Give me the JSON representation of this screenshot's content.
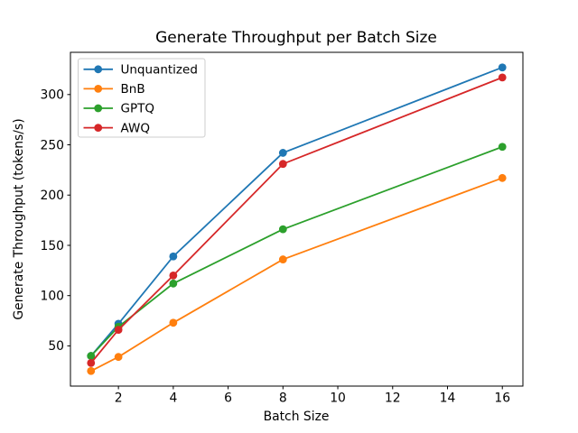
{
  "chart_data": {
    "type": "line",
    "title": "Generate Throughput per Batch Size",
    "xlabel": "Batch Size",
    "ylabel": "Generate Throughput (tokens/s)",
    "x": [
      1,
      2,
      4,
      8,
      16
    ],
    "series": [
      {
        "name": "Unquantized",
        "color": "#1f77b4",
        "values": [
          40,
          72,
          139,
          242,
          327
        ]
      },
      {
        "name": "BnB",
        "color": "#ff7f0e",
        "values": [
          25,
          39,
          73,
          136,
          217
        ]
      },
      {
        "name": "GPTQ",
        "color": "#2ca02c",
        "values": [
          40,
          69,
          112,
          166,
          248
        ]
      },
      {
        "name": "AWQ",
        "color": "#d62728",
        "values": [
          33,
          66,
          120,
          231,
          317
        ]
      }
    ],
    "xticks": [
      2,
      4,
      6,
      8,
      10,
      12,
      14,
      16
    ],
    "yticks": [
      50,
      100,
      150,
      200,
      250,
      300
    ],
    "xlim": [
      0.25,
      16.75
    ],
    "ylim": [
      10,
      342
    ],
    "grid": false,
    "legend_position": "upper-left",
    "marker": "o",
    "axis_color": "#000000",
    "legend_border_color": "#cccccc",
    "background_color": "#ffffff"
  }
}
